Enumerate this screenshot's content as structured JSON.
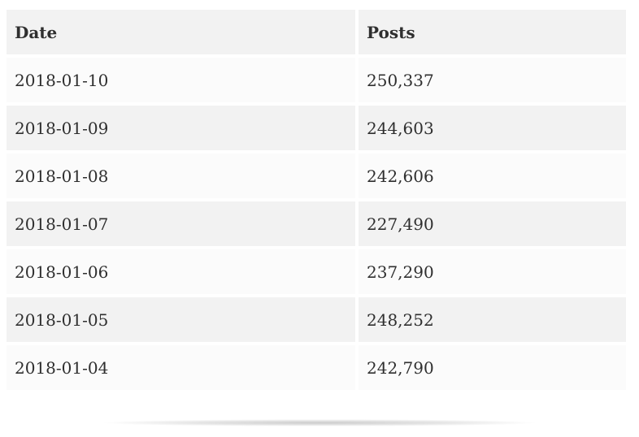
{
  "table": {
    "columns": [
      {
        "key": "date",
        "label": "Date"
      },
      {
        "key": "posts",
        "label": "Posts"
      }
    ],
    "rows": [
      {
        "date": "2018-01-10",
        "posts": "250,337"
      },
      {
        "date": "2018-01-09",
        "posts": "244,603"
      },
      {
        "date": "2018-01-08",
        "posts": "242,606"
      },
      {
        "date": "2018-01-07",
        "posts": "227,490"
      },
      {
        "date": "2018-01-06",
        "posts": "237,290"
      },
      {
        "date": "2018-01-05",
        "posts": "248,252"
      },
      {
        "date": "2018-01-04",
        "posts": "242,790"
      }
    ]
  },
  "colors": {
    "header_bg": "#f2f2f2",
    "row_stripe_bg": "#f2f2f2",
    "row_light_bg": "#fbfbfb",
    "text": "#2f2f2f",
    "page_bg": "#ffffff"
  }
}
